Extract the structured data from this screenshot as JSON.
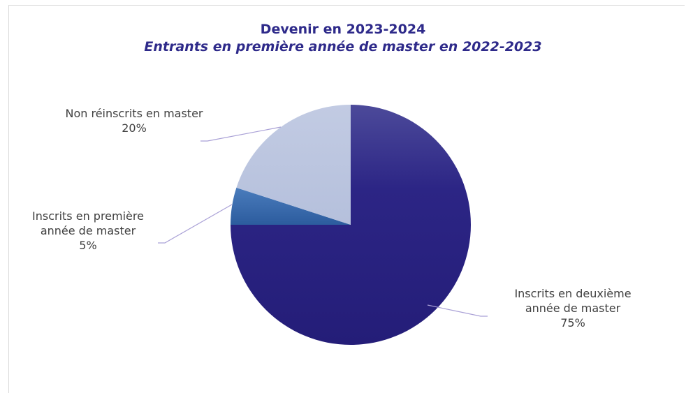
{
  "chart_data": {
    "type": "pie",
    "title": "Devenir en 2023-2024",
    "subtitle": "Entrants en première année de master en 2022-2023",
    "slices": [
      {
        "label_lines": [
          "Inscrits en deuxième",
          "année de master"
        ],
        "value_label": "75%",
        "value": 75,
        "color": "#2a2382"
      },
      {
        "label_lines": [
          "Inscrits en première",
          "année de master"
        ],
        "value_label": "5%",
        "value": 5,
        "color": "#3466a8"
      },
      {
        "label_lines": [
          "Non réinscrits en master"
        ],
        "value_label": "20%",
        "value": 20,
        "color": "#b9c4df"
      }
    ],
    "leader_line_color": "#a9a0d6",
    "title_color": "#2e2a8a"
  }
}
